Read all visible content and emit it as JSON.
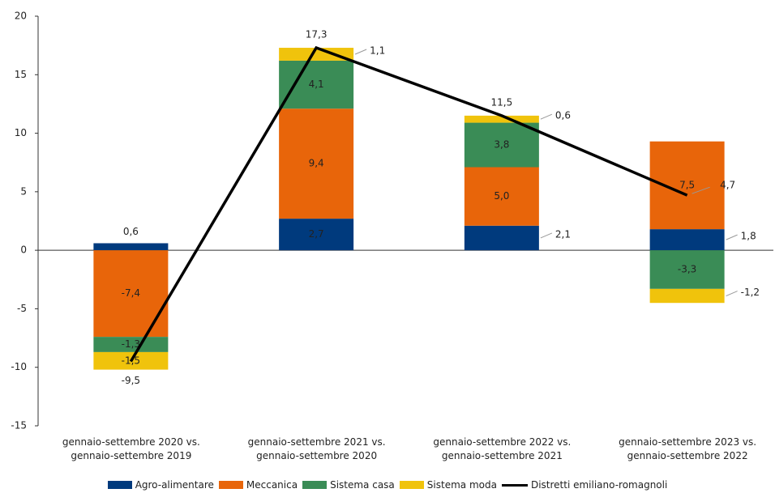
{
  "chart_data": {
    "type": "bar",
    "stacked": true,
    "categories": [
      "gennaio-settembre 2020 vs. gennaio-settembre 2019",
      "gennaio-settembre 2021 vs. gennaio-settembre 2020",
      "gennaio-settembre 2022 vs. gennaio-settembre 2021",
      "gennaio-settembre 2023 vs. gennaio-settembre 2022"
    ],
    "series": [
      {
        "name": "Agro-alimentare",
        "color": "#003a7d",
        "values": [
          0.6,
          2.7,
          2.1,
          1.8
        ],
        "value_labels": [
          "0,6",
          "2,7",
          "2,1",
          "1,8"
        ]
      },
      {
        "name": "Meccanica",
        "color": "#e8650a",
        "values": [
          -7.4,
          9.4,
          5.0,
          7.5
        ],
        "value_labels": [
          "-7,4",
          "9,4",
          "5,0",
          "7,5"
        ]
      },
      {
        "name": "Sistema casa",
        "color": "#3a8c56",
        "values": [
          -1.3,
          4.1,
          3.8,
          -3.3
        ],
        "value_labels": [
          "-1,3",
          "4,1",
          "3,8",
          "-3,3"
        ]
      },
      {
        "name": "Sistema moda",
        "color": "#f0c30c",
        "values": [
          -1.5,
          1.1,
          0.6,
          -1.2
        ],
        "value_labels": [
          "-1,5",
          "1,1",
          "0,6",
          "-1,2"
        ]
      },
      {
        "name": "Distretti emiliano-romagnoli",
        "type": "line",
        "color": "#000000",
        "values": [
          -9.5,
          17.3,
          11.5,
          4.7
        ],
        "value_labels": [
          "-9,5",
          "17,3",
          "11,5",
          "4,7"
        ]
      }
    ],
    "ylim": [
      -15,
      20
    ],
    "yticks": [
      -15,
      -10,
      -5,
      0,
      5,
      10,
      15,
      20
    ],
    "grid": false,
    "legend": "bottom"
  }
}
